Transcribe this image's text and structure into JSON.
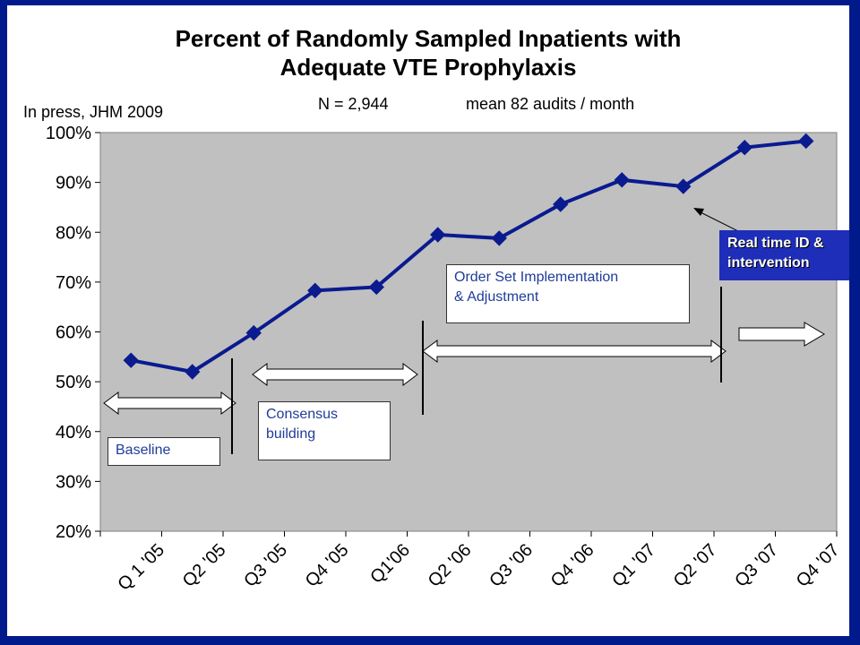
{
  "chart_data": {
    "type": "line",
    "title_line1": "Percent of Randomly Sampled Inpatients with",
    "title_line2": "Adequate VTE Prophylaxis",
    "n_label": "N = 2,944",
    "mean_label": "mean 82 audits / month",
    "source_note": "In press, JHM 2009",
    "xlabel": "",
    "ylabel": "",
    "ylim": [
      20,
      100
    ],
    "y_ticks": [
      "20%",
      "30%",
      "40%",
      "50%",
      "60%",
      "70%",
      "80%",
      "90%",
      "100%"
    ],
    "categories": [
      "Q 1 '05",
      "Q2 '05",
      "Q3 '05",
      "Q4 '05",
      "Q1'06",
      "Q2 '06",
      "Q3 '06",
      "Q4 '06",
      "Q1 '07",
      "Q2 '07",
      "Q3 '07",
      "Q4 '07"
    ],
    "x_points": [
      0.5,
      1.5,
      2.5,
      3.5,
      4.5,
      5.5,
      6.5,
      7.5,
      8.5,
      9.5,
      10.5,
      11.5
    ],
    "values": [
      54.3,
      52.0,
      59.8,
      68.3,
      69.0,
      79.5,
      78.8,
      85.6,
      90.5,
      89.2,
      97.0,
      98.3
    ],
    "grid": false,
    "line_color": "#0a1a8f",
    "plot_bg": "#c0c0c0",
    "annotations": {
      "baseline": "Baseline",
      "consensus_line1": "Consensus",
      "consensus_line2": "building",
      "orderset_line1": "Order Set Implementation",
      "orderset_line2": "& Adjustment",
      "realtime_line1": "Real time ID &",
      "realtime_line2": "intervention"
    }
  }
}
